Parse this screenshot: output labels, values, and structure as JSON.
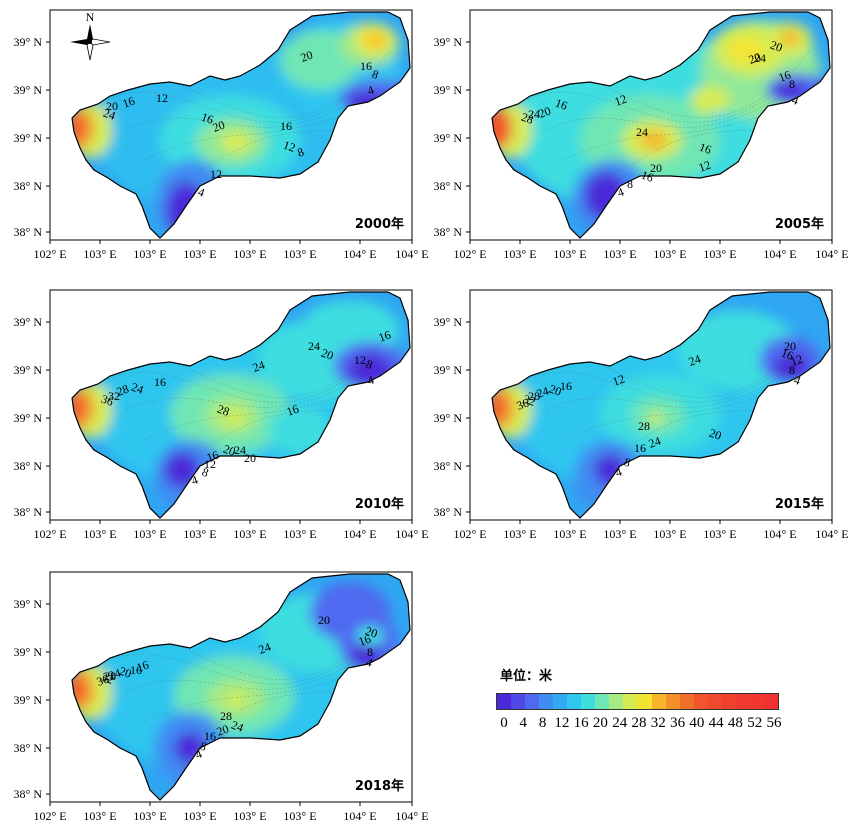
{
  "panels": [
    {
      "id": "2000",
      "label": "2000年",
      "contour_labels": [
        "20",
        "16",
        "8",
        "4",
        "12",
        "16",
        "20",
        "16",
        "12",
        "8",
        "12",
        "4",
        "16",
        "20",
        "24"
      ]
    },
    {
      "id": "2005",
      "label": "2005年",
      "contour_labels": [
        "20",
        "24",
        "20",
        "16",
        "8",
        "4",
        "12",
        "24",
        "16",
        "12",
        "20",
        "16",
        "4",
        "8",
        "16",
        "20",
        "24",
        "28"
      ]
    },
    {
      "id": "2010",
      "label": "2010年",
      "contour_labels": [
        "24",
        "24",
        "20",
        "16",
        "12",
        "8",
        "4",
        "16",
        "28",
        "16",
        "24",
        "20",
        "16",
        "12",
        "8",
        "4",
        "20",
        "24",
        "28",
        "32",
        "36"
      ]
    },
    {
      "id": "2015",
      "label": "2015年",
      "contour_labels": [
        "24",
        "20",
        "16",
        "12",
        "8",
        "4",
        "12",
        "28",
        "20",
        "24",
        "16",
        "8",
        "4",
        "16",
        "20",
        "24",
        "28",
        "32",
        "36"
      ]
    },
    {
      "id": "2018",
      "label": "2018年",
      "contour_labels": [
        "24",
        "20",
        "20",
        "16",
        "8",
        "4",
        "16",
        "28",
        "24",
        "20",
        "16",
        "8",
        "4",
        "16",
        "20",
        "24",
        "28",
        "32",
        "36"
      ]
    }
  ],
  "axes": {
    "y_labels": [
      "39° N",
      "39° N",
      "39° N",
      "38° N",
      "38° N"
    ],
    "x_labels": [
      "102° E",
      "103° E",
      "103° E",
      "103° E",
      "103° E",
      "103° E",
      "104° E",
      "104° E"
    ]
  },
  "compass": {
    "north_label": "N"
  },
  "legend": {
    "title": "单位：米",
    "ticks": [
      "0",
      "4",
      "8",
      "12",
      "16",
      "20",
      "24",
      "28",
      "32",
      "36",
      "40",
      "44",
      "48",
      "52",
      "56"
    ],
    "colors": [
      "#4b2bd9",
      "#5148ea",
      "#4f6af0",
      "#3f8cf3",
      "#32a9f2",
      "#2fc6ef",
      "#3ddde0",
      "#6fe6b4",
      "#a5ea84",
      "#d6ec52",
      "#f4e330",
      "#f6b52a",
      "#f48f2a",
      "#f26f2a",
      "#f2552c",
      "#f24a2e",
      "#f2402f",
      "#f23b30",
      "#f23630",
      "#f23030"
    ]
  }
}
